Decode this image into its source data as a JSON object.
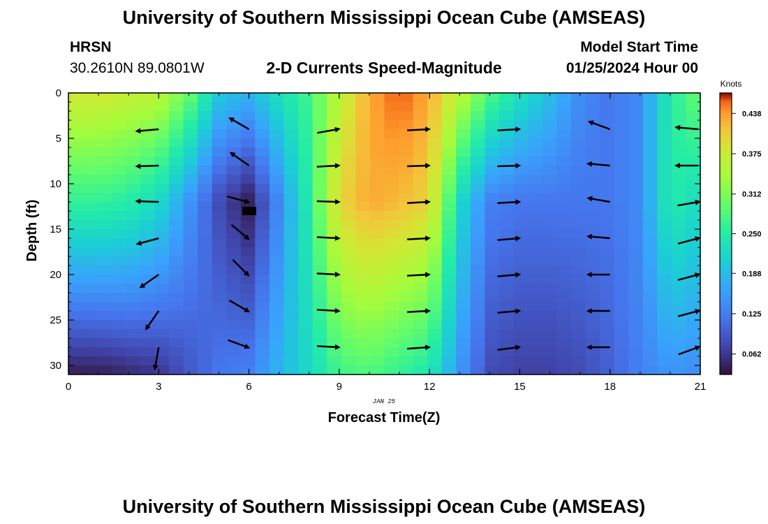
{
  "header": {
    "title": "University of Southern Mississippi Ocean Cube (AMSEAS)",
    "station": "HRSN",
    "coords": "30.2610N  89.0801W",
    "subtitle": "2-D Currents Speed-Magnitude",
    "model_start_label": "Model Start Time",
    "model_start_value": "01/25/2024 Hour 00"
  },
  "footer": {
    "title": "University of Southern Mississippi Ocean Cube (AMSEAS)"
  },
  "chart_data": {
    "type": "heatmap",
    "title": "2-D Currents Speed-Magnitude",
    "xlabel": "Forecast Time(Z)",
    "ylabel": "Depth (ft)",
    "date_label": "JAN 25",
    "xlim": [
      0,
      21
    ],
    "ylim": [
      0,
      31
    ],
    "x_ticks": [
      0,
      3,
      6,
      9,
      12,
      15,
      18,
      21
    ],
    "y_ticks": [
      0,
      5,
      10,
      15,
      20,
      25,
      30
    ],
    "colorbar": {
      "label": "Knots",
      "range": [
        0.03,
        0.47
      ],
      "ticks": [
        "0.438",
        "0.375",
        "0.312",
        "0.250",
        "0.188",
        "0.125",
        "0.062"
      ],
      "tick_values": [
        0.438,
        0.375,
        0.312,
        0.25,
        0.188,
        0.125,
        0.062
      ]
    },
    "field_columns": {
      "x": [
        0,
        1,
        2,
        3,
        4,
        5,
        6,
        7,
        8,
        9,
        10,
        11,
        12,
        13,
        14,
        15,
        16,
        17,
        18,
        19,
        20,
        21
      ],
      "surface_speed": [
        0.38,
        0.38,
        0.37,
        0.36,
        0.3,
        0.2,
        0.18,
        0.23,
        0.27,
        0.36,
        0.43,
        0.46,
        0.43,
        0.36,
        0.28,
        0.23,
        0.19,
        0.14,
        0.12,
        0.14,
        0.25,
        0.3
      ],
      "midwater_speed": [
        0.26,
        0.26,
        0.25,
        0.22,
        0.15,
        0.08,
        0.04,
        0.14,
        0.25,
        0.4,
        0.43,
        0.42,
        0.4,
        0.22,
        0.13,
        0.12,
        0.12,
        0.12,
        0.12,
        0.14,
        0.25,
        0.22
      ],
      "bottom_speed": [
        0.04,
        0.04,
        0.05,
        0.06,
        0.09,
        0.12,
        0.13,
        0.18,
        0.22,
        0.27,
        0.28,
        0.26,
        0.24,
        0.15,
        0.08,
        0.07,
        0.07,
        0.08,
        0.1,
        0.13,
        0.15,
        0.14
      ]
    },
    "vectors": [
      {
        "x": 3,
        "depths": [
          4,
          8,
          12,
          16,
          20,
          24,
          28
        ],
        "dirs_deg": [
          185,
          182,
          178,
          195,
          215,
          235,
          260
        ]
      },
      {
        "x": 6,
        "depths": [
          4,
          8,
          12,
          16,
          20,
          24,
          28
        ],
        "dirs_deg": [
          150,
          145,
          -15,
          -40,
          -45,
          -30,
          -20
        ]
      },
      {
        "x": 9,
        "depths": [
          4,
          8,
          12,
          16,
          20,
          24,
          28
        ],
        "dirs_deg": [
          10,
          3,
          -2,
          -3,
          -3,
          -3,
          -3
        ]
      },
      {
        "x": 12,
        "depths": [
          4,
          8,
          12,
          16,
          20,
          24,
          28
        ],
        "dirs_deg": [
          3,
          2,
          3,
          3,
          3,
          3,
          4
        ]
      },
      {
        "x": 15,
        "depths": [
          4,
          8,
          12,
          16,
          20,
          24,
          28
        ],
        "dirs_deg": [
          3,
          2,
          3,
          5,
          5,
          5,
          7
        ]
      },
      {
        "x": 18,
        "depths": [
          4,
          8,
          12,
          16,
          20,
          24,
          28
        ],
        "dirs_deg": [
          160,
          175,
          170,
          175,
          180,
          180,
          180
        ]
      },
      {
        "x": 21,
        "depths": [
          4,
          8,
          12,
          16,
          20,
          24,
          28
        ],
        "dirs_deg": [
          175,
          180,
          10,
          15,
          15,
          15,
          20
        ]
      }
    ]
  }
}
